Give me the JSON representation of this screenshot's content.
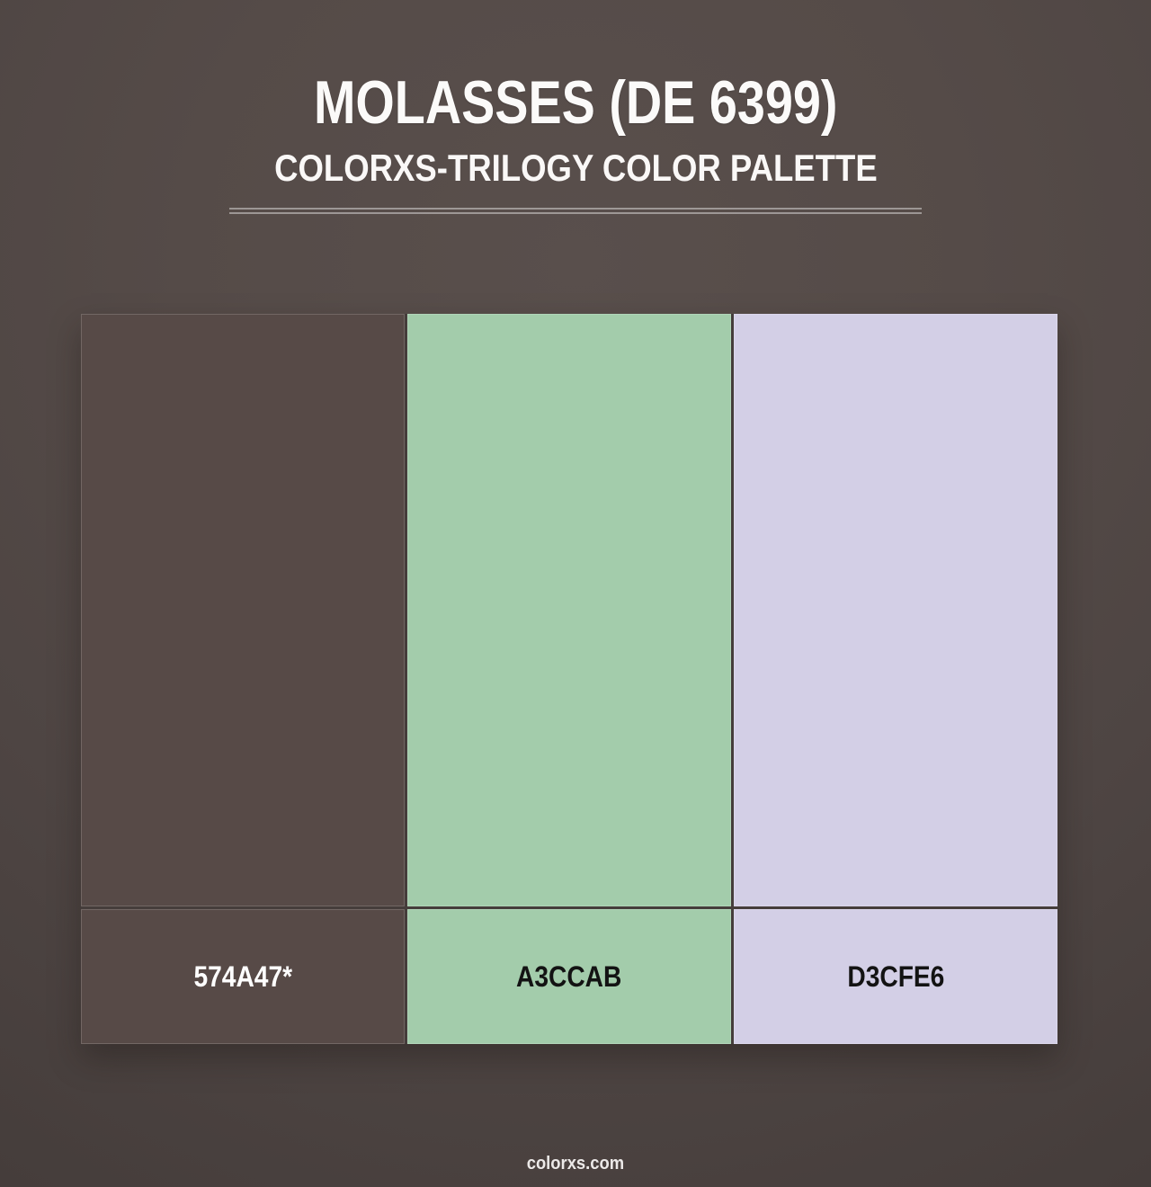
{
  "page": {
    "title": "MOLASSES (DE 6399)",
    "subtitle": "COLORXS-TRILOGY COLOR PALETTE",
    "footer_brand": "colorxs.com"
  },
  "palette": {
    "swatches": [
      {
        "label": "574A47*",
        "color": "#574A47",
        "label_color": "#FFFFFF"
      },
      {
        "label": "A3CCAB",
        "color": "#A3CCAB",
        "label_color": "#131313"
      },
      {
        "label": "D3CFE6",
        "color": "#D3CFE6",
        "label_color": "#131313"
      }
    ]
  }
}
